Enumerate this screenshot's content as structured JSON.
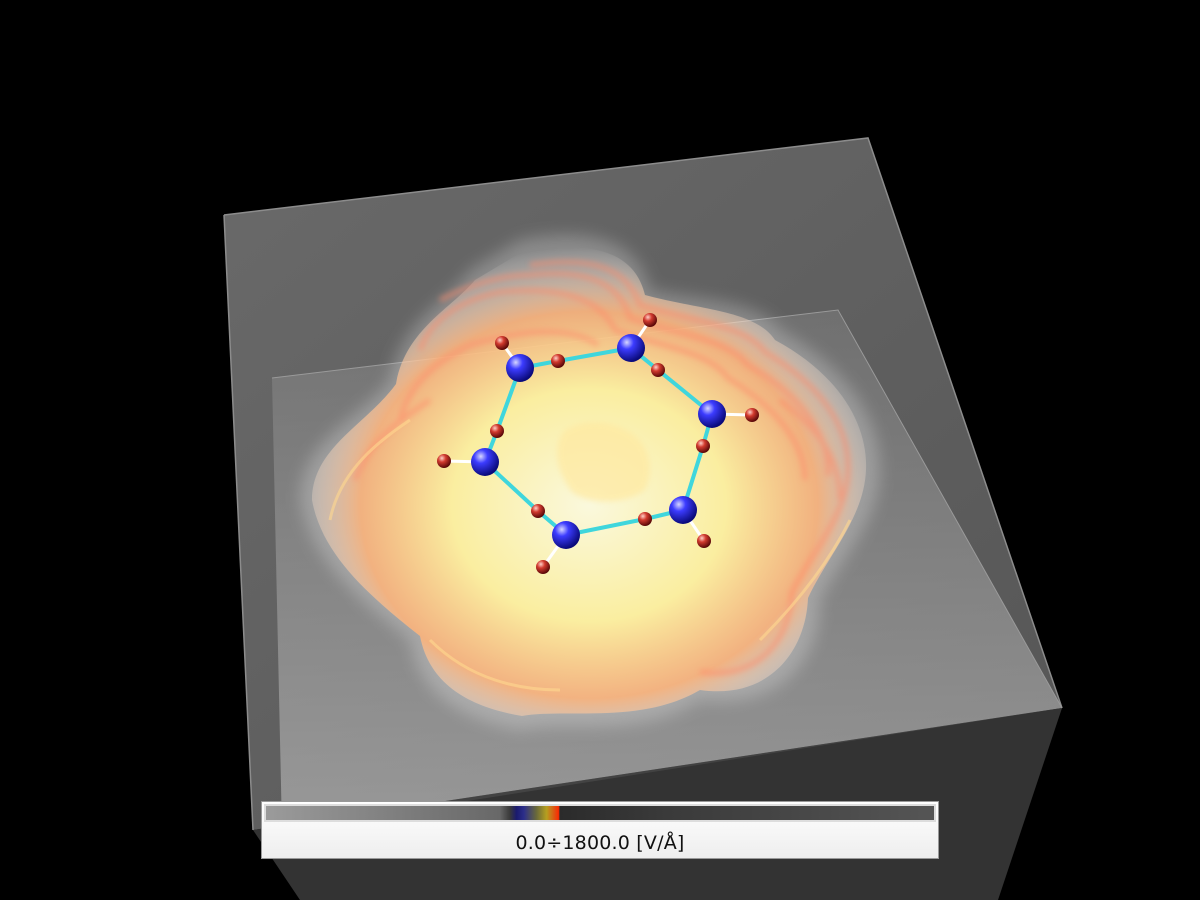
{
  "colorbar": {
    "range_label": "0.0÷1800.0 [V/Å]",
    "colors": {
      "low": "#1a1a6e",
      "mid": "#b6a020",
      "high": "#ff2a00"
    }
  },
  "scene": {
    "colors": {
      "background": "#000000",
      "box": "#7a7a7a",
      "atom_large": "#2b2bff",
      "atom_small": "#c8322c",
      "bond_ring": "#3fd6dc",
      "bond_side": "#ffffff",
      "isosurface_outer": "#fff6b0",
      "isosurface_inner": "#ff7a5a"
    }
  }
}
